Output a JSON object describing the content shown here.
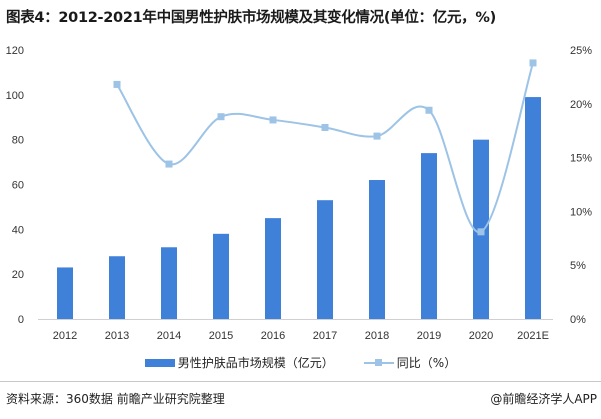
{
  "title": "图表4：2012-2021年中国男性护肤市场规模及其变化情况(单位：亿元，%)",
  "source": "资料来源：360数据 前瞻产业研究院整理",
  "brand": "@前瞻经济学人APP",
  "chart_data": {
    "type": "bar+line",
    "categories": [
      "2012",
      "2013",
      "2014",
      "2015",
      "2016",
      "2017",
      "2018",
      "2019",
      "2020",
      "2021E"
    ],
    "series": [
      {
        "name": "男性护肤品市场规模（亿元）",
        "type": "bar",
        "axis": "left",
        "color": "#3f80d9",
        "values": [
          23,
          28,
          32,
          38,
          45,
          53,
          62,
          74,
          80,
          99
        ]
      },
      {
        "name": "同比（%）",
        "type": "line",
        "axis": "right",
        "color": "#9dc3e6",
        "values": [
          null,
          21.8,
          14.4,
          18.8,
          18.5,
          17.8,
          17.0,
          19.4,
          8.1,
          23.8
        ]
      }
    ],
    "y_left": {
      "range": [
        0,
        120
      ],
      "ticks": [
        "0",
        "20",
        "40",
        "60",
        "80",
        "100",
        "120"
      ]
    },
    "y_right": {
      "range": [
        0,
        25
      ],
      "ticks": [
        "0%",
        "5%",
        "10%",
        "15%",
        "20%",
        "25%"
      ]
    },
    "grid": false,
    "legend": "bottom"
  }
}
